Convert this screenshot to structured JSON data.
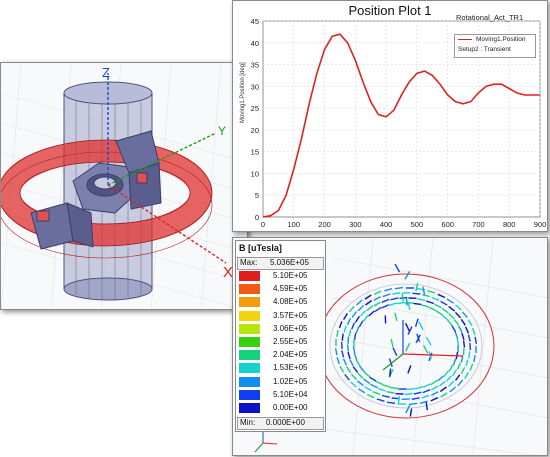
{
  "plot": {
    "title": "Position Plot 1",
    "subtitle": "Rotational_Act_TR1",
    "legend_line1": "Moving1.Position",
    "legend_line2": "Setup2 : Transient",
    "ylabel": "Moving1.Position [deg]",
    "series_color": "#e02020",
    "y_ticks": [
      "0",
      "5",
      "10",
      "15",
      "20",
      "25",
      "30",
      "35",
      "40",
      "45"
    ],
    "x_ticks": [
      "0",
      "100",
      "200",
      "300",
      "400",
      "500",
      "600",
      "700",
      "800",
      "900"
    ]
  },
  "chart_data": {
    "type": "line",
    "title": "Position Plot 1",
    "xlabel": "",
    "ylabel": "Moving1.Position [deg]",
    "xlim": [
      0,
      900
    ],
    "ylim": [
      0,
      45
    ],
    "grid": true,
    "legend": "top-right",
    "series": [
      {
        "name": "Moving1.Position",
        "x": [
          0,
          25,
          50,
          75,
          100,
          125,
          150,
          175,
          200,
          225,
          250,
          275,
          300,
          325,
          350,
          375,
          400,
          425,
          450,
          475,
          500,
          525,
          550,
          575,
          600,
          625,
          650,
          675,
          700,
          725,
          750,
          775,
          800,
          825,
          850,
          875,
          900
        ],
        "y": [
          0,
          0.3,
          1.5,
          5,
          11,
          18,
          26,
          33,
          38.5,
          41.5,
          42,
          40,
          36,
          31,
          26.5,
          23.5,
          23,
          24.5,
          28,
          31,
          33,
          33.5,
          32.5,
          30.5,
          28,
          26.5,
          26,
          26.5,
          28.5,
          30,
          30.5,
          30.5,
          29.5,
          28.5,
          28,
          28,
          28
        ]
      }
    ]
  },
  "field": {
    "title": "B [uTesla]",
    "max_label": "Max:",
    "max_value": "5.036E+05",
    "min_label": "Min:",
    "min_value": "0.000E+00",
    "scale": [
      {
        "label": "5.10E+05",
        "color": "#e21b1b"
      },
      {
        "label": "4.59E+05",
        "color": "#f25a12"
      },
      {
        "label": "4.08E+05",
        "color": "#f59b0e"
      },
      {
        "label": "3.57E+05",
        "color": "#f3d40c"
      },
      {
        "label": "3.06E+05",
        "color": "#b7e60c"
      },
      {
        "label": "2.55E+05",
        "color": "#38d10f"
      },
      {
        "label": "2.04E+05",
        "color": "#16d27c"
      },
      {
        "label": "1.53E+05",
        "color": "#13d3cf"
      },
      {
        "label": "1.02E+05",
        "color": "#128ef0"
      },
      {
        "label": "5.10E+04",
        "color": "#0e3df2"
      },
      {
        "label": "0.00E+00",
        "color": "#0b12c8"
      }
    ]
  },
  "axes3d": {
    "x": "X",
    "y": "Y",
    "z": "Z",
    "x_color": "#e02020",
    "y_color": "#1a9a1a",
    "z_color": "#2244dd"
  }
}
